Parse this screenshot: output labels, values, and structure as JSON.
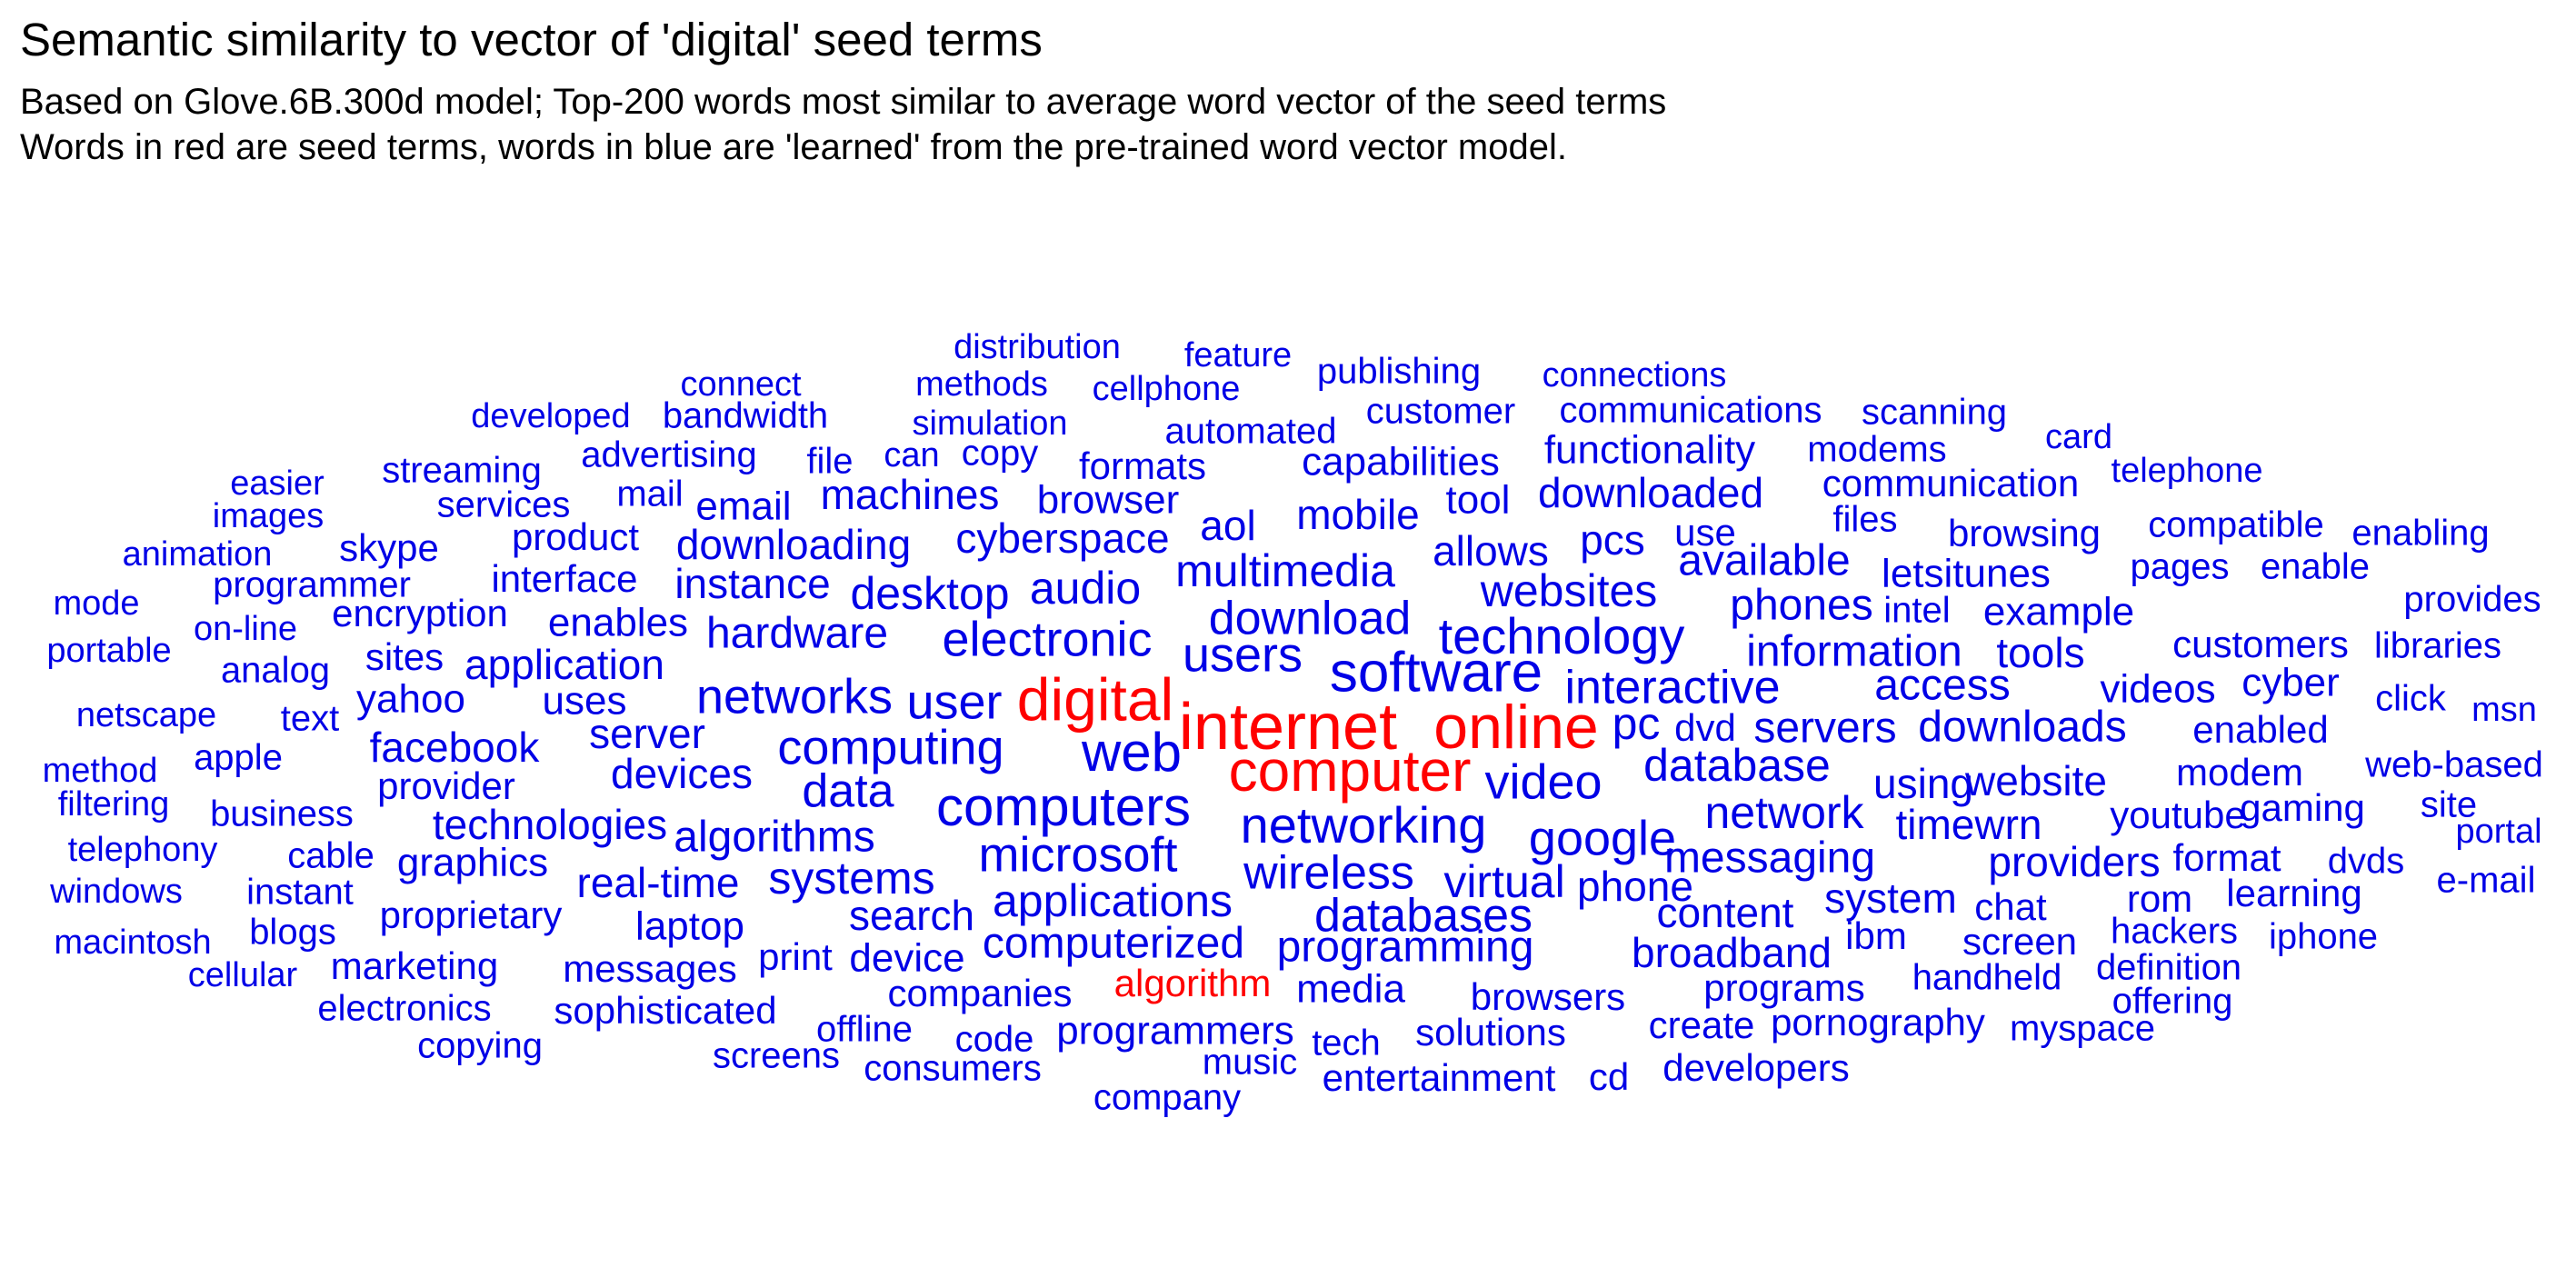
{
  "header": {
    "title": "Semantic similarity to vector of 'digital' seed terms",
    "subtitle_line1": "Based on Glove.6B.300d model; Top-200 words most similar to average word vector of the seed terms",
    "subtitle_line2": "Words in red are seed terms, words in blue are 'learned' from the pre-trained word vector model."
  },
  "colors": {
    "seed": "#ff0000",
    "learned": "#0000e6"
  },
  "chart_data": {
    "type": "wordcloud",
    "seed_terms": [
      "digital",
      "internet",
      "online",
      "computer",
      "algorithm"
    ],
    "words": [
      "distribution",
      "feature",
      "publishing",
      "connections",
      "connect",
      "methods",
      "cellphone",
      "customer",
      "communications",
      "scanning",
      "developed",
      "bandwidth",
      "simulation",
      "automated",
      "card",
      "advertising",
      "can",
      "copy",
      "file",
      "capabilities",
      "functionality",
      "modems",
      "telephone",
      "easier",
      "streaming",
      "formats",
      "communication",
      "images",
      "services",
      "mail",
      "email",
      "machines",
      "browser",
      "tool",
      "downloaded",
      "files",
      "animation",
      "skype",
      "product",
      "aol",
      "mobile",
      "pcs",
      "use",
      "browsing",
      "compatible",
      "enabling",
      "downloading",
      "cyberspace",
      "allows",
      "available",
      "pages",
      "enable",
      "mode",
      "programmer",
      "interface",
      "instance",
      "multimedia",
      "letsitunes",
      "provides",
      "portable",
      "on-line",
      "encryption",
      "enables",
      "desktop",
      "audio",
      "websites",
      "phones",
      "intel",
      "example",
      "customers",
      "libraries",
      "hardware",
      "download",
      "analog",
      "sites",
      "application",
      "electronic",
      "technology",
      "information",
      "tools",
      "users",
      "netscape",
      "software",
      "interactive",
      "access",
      "videos",
      "cyber",
      "text",
      "yahoo",
      "uses",
      "networks",
      "user",
      "click",
      "msn",
      "pc",
      "dvd",
      "servers",
      "downloads",
      "enabled",
      "apple",
      "server",
      "method",
      "web",
      "database",
      "web-based",
      "facebook",
      "devices",
      "computing",
      "filtering",
      "provider",
      "using",
      "website",
      "modem",
      "gaming",
      "site",
      "data",
      "video",
      "business",
      "telephony",
      "technologies",
      "computers",
      "network",
      "timewrn",
      "youtube",
      "portal",
      "cable",
      "algorithms",
      "networking",
      "google",
      "format",
      "dvds",
      "graphics",
      "microsoft",
      "messaging",
      "providers",
      "windows",
      "instant",
      "real-time",
      "systems",
      "wireless",
      "virtual",
      "phone",
      "e-mail",
      "system",
      "learning",
      "proprietary",
      "applications",
      "chat",
      "rom",
      "databases",
      "content",
      "macintosh",
      "search",
      "laptop",
      "hackers",
      "iphone",
      "blogs",
      "ibm",
      "screen",
      "print",
      "computerized",
      "device",
      "marketing",
      "messages",
      "programming",
      "broadband",
      "cellular",
      "definition",
      "handheld",
      "electronics",
      "companies",
      "media",
      "sophisticated",
      "programs",
      "browsers",
      "offering",
      "copying",
      "offline",
      "code",
      "programmers",
      "solutions",
      "create",
      "pornography",
      "myspace",
      "tech",
      "music",
      "screens",
      "consumers",
      "entertainment",
      "cd",
      "developers",
      "company"
    ]
  }
}
